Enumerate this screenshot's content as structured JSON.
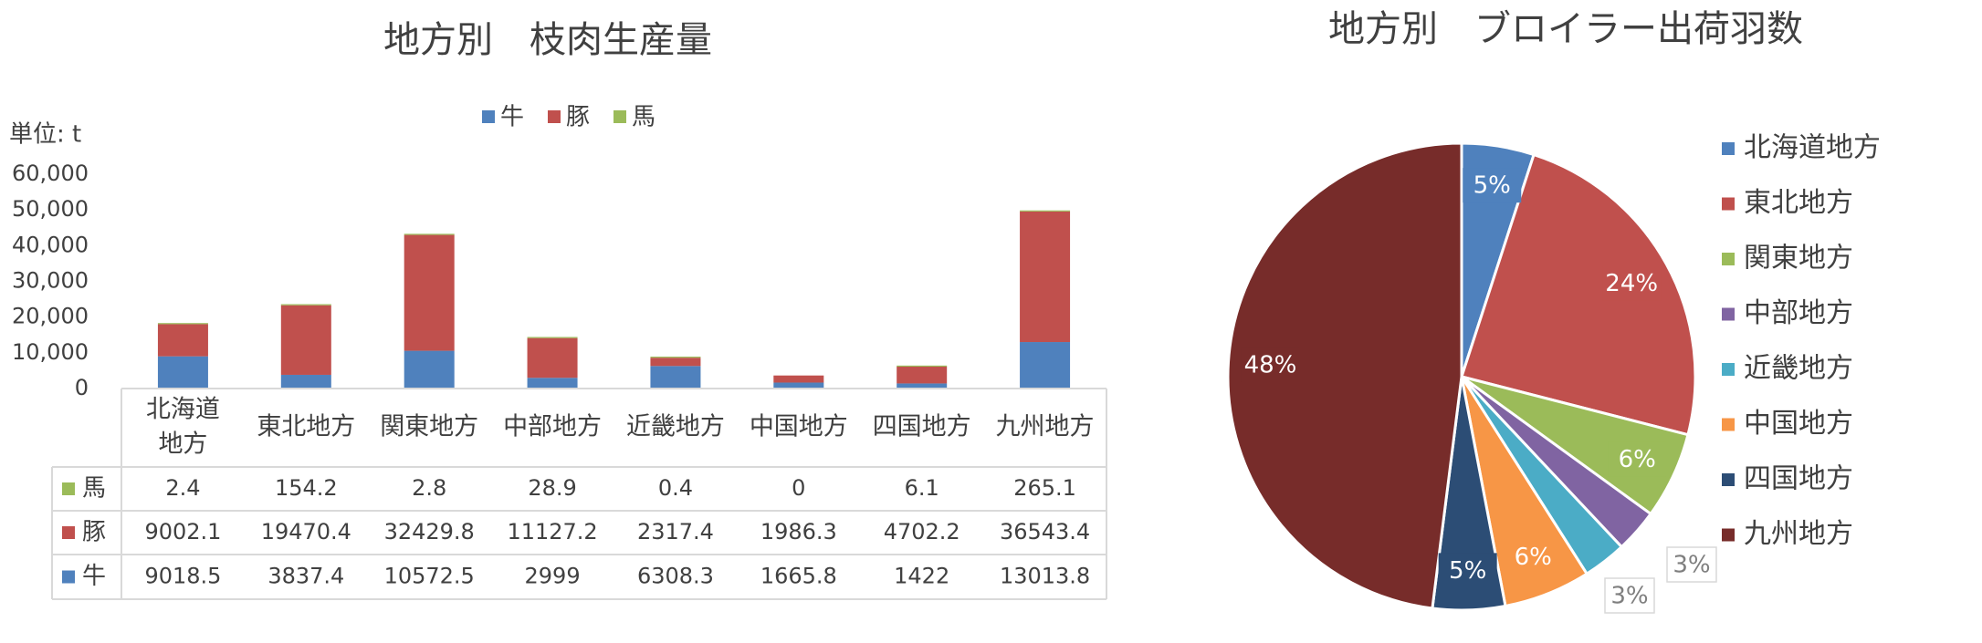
{
  "chart_data": [
    {
      "type": "bar",
      "stacked": true,
      "title": "地方別　枝肉生産量",
      "ylabel": "単位: t",
      "ylim": [
        0,
        60000
      ],
      "yticks": [
        "0",
        "10,000",
        "20,000",
        "30,000",
        "40,000",
        "50,000",
        "60,000"
      ],
      "categories": [
        "北海道地方",
        "東北地方",
        "関東地方",
        "中部地方",
        "近畿地方",
        "中国地方",
        "四国地方",
        "九州地方"
      ],
      "category_labels": [
        [
          "北海道",
          "地方"
        ],
        [
          "東北地方"
        ],
        [
          "関東地方"
        ],
        [
          "中部地方"
        ],
        [
          "近畿地方"
        ],
        [
          "中国地方"
        ],
        [
          "四国地方"
        ],
        [
          "九州地方"
        ]
      ],
      "series": [
        {
          "name": "牛",
          "color": "#4f81bd",
          "values": [
            9018.5,
            3837.4,
            10572.5,
            2999,
            6308.3,
            1665.8,
            1422,
            13013.8
          ]
        },
        {
          "name": "豚",
          "color": "#c0504d",
          "values": [
            9002.1,
            19470.4,
            32429.8,
            11127.2,
            2317.4,
            1986.3,
            4702.2,
            36543.4
          ]
        },
        {
          "name": "馬",
          "color": "#9bbb59",
          "values": [
            2.4,
            154.2,
            2.8,
            28.9,
            0.4,
            0,
            6.1,
            265.1
          ]
        }
      ],
      "legend_position": "top",
      "data_table": {
        "row_order": [
          "馬",
          "豚",
          "牛"
        ],
        "rows": [
          [
            "2.4",
            "154.2",
            "2.8",
            "28.9",
            "0.4",
            "0",
            "6.1",
            "265.1"
          ],
          [
            "9002.1",
            "19470.4",
            "32429.8",
            "11127.2",
            "2317.4",
            "1986.3",
            "4702.2",
            "36543.4"
          ],
          [
            "9018.5",
            "3837.4",
            "10572.5",
            "2999",
            "6308.3",
            "1665.8",
            "1422",
            "13013.8"
          ]
        ]
      }
    },
    {
      "type": "pie",
      "title": "地方別　ブロイラー出荷羽数",
      "labels": [
        "北海道地方",
        "東北地方",
        "関東地方",
        "中部地方",
        "近畿地方",
        "中国地方",
        "四国地方",
        "九州地方"
      ],
      "values": [
        5,
        24,
        6,
        3,
        3,
        6,
        5,
        48
      ],
      "data_labels": [
        "5%",
        "24%",
        "6%",
        "3%",
        "3%",
        "6%",
        "5%",
        "48%"
      ],
      "colors": [
        "#4f81bd",
        "#c0504d",
        "#9bbb59",
        "#8064a2",
        "#4bacc6",
        "#f79646",
        "#2c4d75",
        "#772c2a"
      ],
      "legend_position": "right"
    }
  ]
}
